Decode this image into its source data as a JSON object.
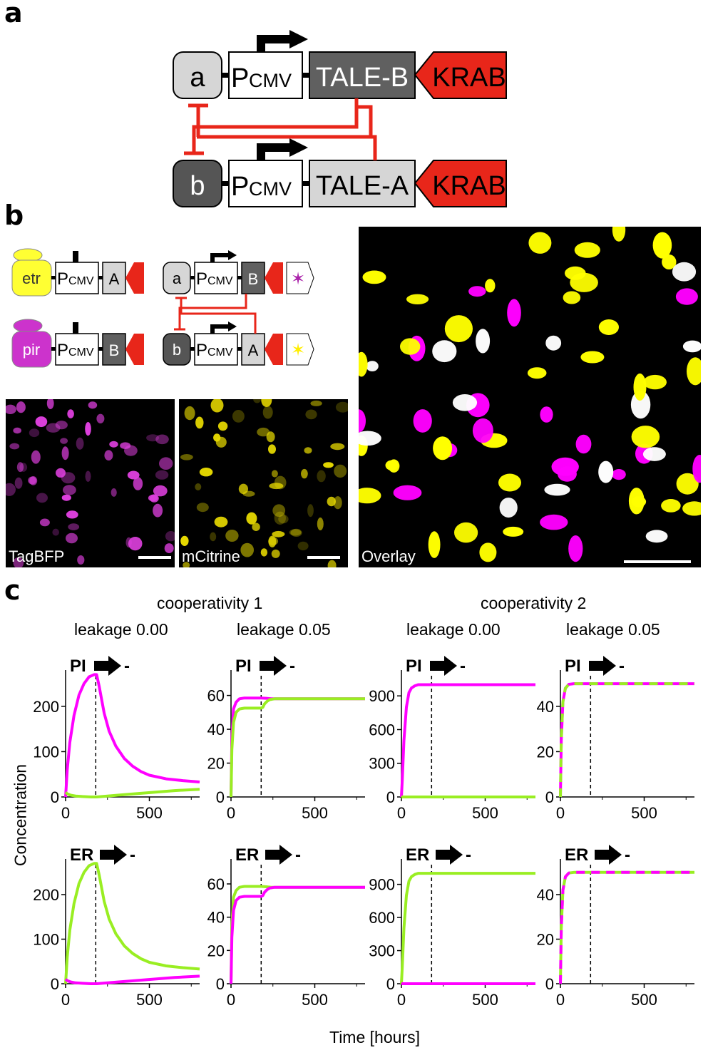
{
  "panel_labels": {
    "a": "a",
    "b": "b",
    "c": "c"
  },
  "panel_a": {
    "top_row": {
      "node": "a",
      "promoter": "P",
      "promoter_sub": "CMV",
      "tale": "TALE-B",
      "krab": "KRAB"
    },
    "bottom_row": {
      "node": "b",
      "promoter": "P",
      "promoter_sub": "CMV",
      "tale": "TALE-A",
      "krab": "KRAB"
    }
  },
  "panel_b": {
    "sensor_rows": [
      {
        "inducer": "etr",
        "promoter": "P",
        "promoter_sub": "CMV",
        "tale": "A",
        "color": "#ffff33"
      },
      {
        "inducer": "pir",
        "promoter": "P",
        "promoter_sub": "CMV",
        "tale": "B",
        "color": "#cc33cc"
      }
    ],
    "switch_rows": [
      {
        "node": "a",
        "promoter": "P",
        "promoter_sub": "CMV",
        "tale": "B",
        "reporter_color": "#aa22aa"
      },
      {
        "node": "b",
        "promoter": "P",
        "promoter_sub": "CMV",
        "tale": "A",
        "reporter_color": "#ffff00"
      }
    ],
    "images": [
      {
        "label": "TagBFP",
        "color": "#e040e0"
      },
      {
        "label": "mCitrine",
        "color": "#e6d800"
      },
      {
        "label": "Overlay",
        "color": "#ffff00"
      }
    ]
  },
  "panel_c": {
    "column_groups": [
      {
        "title": "cooperativity 1"
      },
      {
        "title": "cooperativity 2"
      }
    ],
    "column_titles": [
      "leakage 0.00",
      "leakage 0.05",
      "leakage 0.00",
      "leakage 0.05"
    ],
    "row_labels": [
      "PI",
      "ER"
    ],
    "arrow_suffix": "-",
    "ylabel": "Concentration",
    "xlabel": "Time [hours]",
    "colors": {
      "magenta": "#ff00ff",
      "green": "#99ee22"
    }
  },
  "chart_data": [
    {
      "type": "line",
      "row": "PI",
      "column": "cooperativity 1, leakage 0.00",
      "xlim": [
        0,
        800
      ],
      "ylim": [
        0,
        280
      ],
      "yticks": [
        0,
        100,
        200
      ],
      "xticks": [
        0,
        500
      ],
      "switch_x": 180,
      "series": [
        {
          "color": "magenta",
          "x": [
            0,
            10,
            25,
            50,
            80,
            110,
            140,
            170,
            185,
            200,
            230,
            260,
            300,
            350,
            400,
            450,
            500,
            600,
            700,
            800
          ],
          "y": [
            0,
            60,
            120,
            180,
            225,
            250,
            265,
            270,
            270,
            245,
            185,
            145,
            112,
            85,
            68,
            56,
            48,
            40,
            36,
            33
          ]
        },
        {
          "color": "green",
          "x": [
            0,
            10,
            30,
            60,
            100,
            150,
            185,
            250,
            350,
            450,
            550,
            650,
            800
          ],
          "y": [
            10,
            7,
            4,
            2,
            1,
            0,
            0,
            2,
            5,
            8,
            11,
            14,
            17
          ]
        }
      ]
    },
    {
      "type": "line",
      "row": "PI",
      "column": "cooperativity 1, leakage 0.05",
      "xlim": [
        0,
        800
      ],
      "ylim": [
        0,
        75
      ],
      "yticks": [
        0,
        20,
        40,
        60
      ],
      "xticks": [
        0,
        500
      ],
      "switch_x": 180,
      "series": [
        {
          "color": "magenta",
          "x": [
            0,
            5,
            15,
            30,
            50,
            80,
            120,
            180,
            210,
            240,
            300,
            500,
            800
          ],
          "y": [
            0,
            35,
            52,
            56,
            58,
            58.5,
            58.5,
            58.5,
            58.3,
            58,
            58,
            58,
            58
          ]
        },
        {
          "color": "green",
          "x": [
            0,
            5,
            15,
            30,
            50,
            80,
            120,
            180,
            190,
            200,
            215,
            230,
            260,
            350,
            500,
            800
          ],
          "y": [
            0,
            28,
            44,
            50,
            52,
            52.5,
            52.5,
            52.5,
            53,
            55,
            56.5,
            57.5,
            58,
            58,
            58,
            58
          ]
        }
      ]
    },
    {
      "type": "line",
      "row": "PI",
      "column": "cooperativity 2, leakage 0.00",
      "xlim": [
        0,
        800
      ],
      "ylim": [
        0,
        1130
      ],
      "yticks": [
        0,
        300,
        600,
        900
      ],
      "xticks": [
        0,
        500
      ],
      "switch_x": 180,
      "series": [
        {
          "color": "magenta",
          "x": [
            0,
            5,
            15,
            30,
            45,
            60,
            80,
            100,
            150,
            800
          ],
          "y": [
            0,
            150,
            500,
            800,
            930,
            970,
            990,
            1000,
            1000,
            1000
          ]
        },
        {
          "color": "green",
          "x": [
            0,
            800
          ],
          "y": [
            0,
            0
          ]
        }
      ]
    },
    {
      "type": "line",
      "row": "PI",
      "column": "cooperativity 2, leakage 0.05",
      "xlim": [
        0,
        800
      ],
      "ylim": [
        0,
        56
      ],
      "yticks": [
        0,
        20,
        40
      ],
      "xticks": [
        0,
        500
      ],
      "switch_x": 180,
      "series": [
        {
          "color": "magenta",
          "dashed": false,
          "x": [
            0,
            5,
            15,
            30,
            50,
            80,
            800
          ],
          "y": [
            0,
            25,
            42,
            48,
            49.7,
            50,
            50
          ]
        },
        {
          "color": "green",
          "dashed": true,
          "x": [
            0,
            5,
            15,
            30,
            50,
            80,
            800
          ],
          "y": [
            0,
            25,
            42,
            48,
            49.7,
            50,
            50
          ]
        }
      ]
    },
    {
      "type": "line",
      "row": "ER",
      "column": "cooperativity 1, leakage 0.00",
      "xlim": [
        0,
        800
      ],
      "ylim": [
        0,
        280
      ],
      "yticks": [
        0,
        100,
        200
      ],
      "xticks": [
        0,
        500
      ],
      "switch_x": 180,
      "series": [
        {
          "color": "green",
          "x": [
            0,
            10,
            25,
            50,
            80,
            110,
            140,
            170,
            185,
            200,
            230,
            260,
            300,
            350,
            400,
            450,
            500,
            600,
            700,
            800
          ],
          "y": [
            0,
            60,
            120,
            180,
            225,
            250,
            265,
            270,
            270,
            245,
            185,
            145,
            112,
            85,
            68,
            56,
            48,
            40,
            36,
            33
          ]
        },
        {
          "color": "magenta",
          "x": [
            0,
            10,
            30,
            60,
            100,
            150,
            185,
            250,
            350,
            450,
            550,
            650,
            800
          ],
          "y": [
            10,
            7,
            4,
            2,
            1,
            0,
            0,
            2,
            5,
            8,
            11,
            14,
            17
          ]
        }
      ]
    },
    {
      "type": "line",
      "row": "ER",
      "column": "cooperativity 1, leakage 0.05",
      "xlim": [
        0,
        800
      ],
      "ylim": [
        0,
        75
      ],
      "yticks": [
        0,
        20,
        40,
        60
      ],
      "xticks": [
        0,
        500
      ],
      "switch_x": 180,
      "series": [
        {
          "color": "green",
          "x": [
            0,
            5,
            15,
            30,
            50,
            80,
            120,
            180,
            210,
            240,
            300,
            500,
            800
          ],
          "y": [
            0,
            35,
            52,
            56,
            58,
            58.5,
            58.5,
            58.5,
            58.3,
            58,
            58,
            58,
            58
          ]
        },
        {
          "color": "magenta",
          "x": [
            0,
            5,
            15,
            30,
            50,
            80,
            120,
            180,
            190,
            200,
            215,
            230,
            260,
            350,
            500,
            800
          ],
          "y": [
            0,
            28,
            44,
            50,
            52,
            52.5,
            52.5,
            52.5,
            53,
            55,
            56.5,
            57.5,
            58,
            58,
            58,
            58
          ]
        }
      ]
    },
    {
      "type": "line",
      "row": "ER",
      "column": "cooperativity 2, leakage 0.00",
      "xlim": [
        0,
        800
      ],
      "ylim": [
        0,
        1130
      ],
      "yticks": [
        0,
        300,
        600,
        900
      ],
      "xticks": [
        0,
        500
      ],
      "switch_x": 180,
      "series": [
        {
          "color": "green",
          "x": [
            0,
            5,
            15,
            30,
            45,
            60,
            80,
            100,
            150,
            800
          ],
          "y": [
            0,
            150,
            500,
            800,
            930,
            970,
            990,
            1000,
            1000,
            1000
          ]
        },
        {
          "color": "magenta",
          "x": [
            0,
            800
          ],
          "y": [
            0,
            0
          ]
        }
      ]
    },
    {
      "type": "line",
      "row": "ER",
      "column": "cooperativity 2, leakage 0.05",
      "xlim": [
        0,
        800
      ],
      "ylim": [
        0,
        56
      ],
      "yticks": [
        0,
        20,
        40
      ],
      "xticks": [
        0,
        500
      ],
      "switch_x": 180,
      "series": [
        {
          "color": "green",
          "dashed": false,
          "x": [
            0,
            5,
            15,
            30,
            50,
            80,
            800
          ],
          "y": [
            0,
            25,
            42,
            48,
            49.7,
            50,
            50
          ]
        },
        {
          "color": "magenta",
          "dashed": true,
          "x": [
            0,
            5,
            15,
            30,
            50,
            80,
            800
          ],
          "y": [
            0,
            25,
            42,
            48,
            49.7,
            50,
            50
          ]
        }
      ]
    }
  ]
}
